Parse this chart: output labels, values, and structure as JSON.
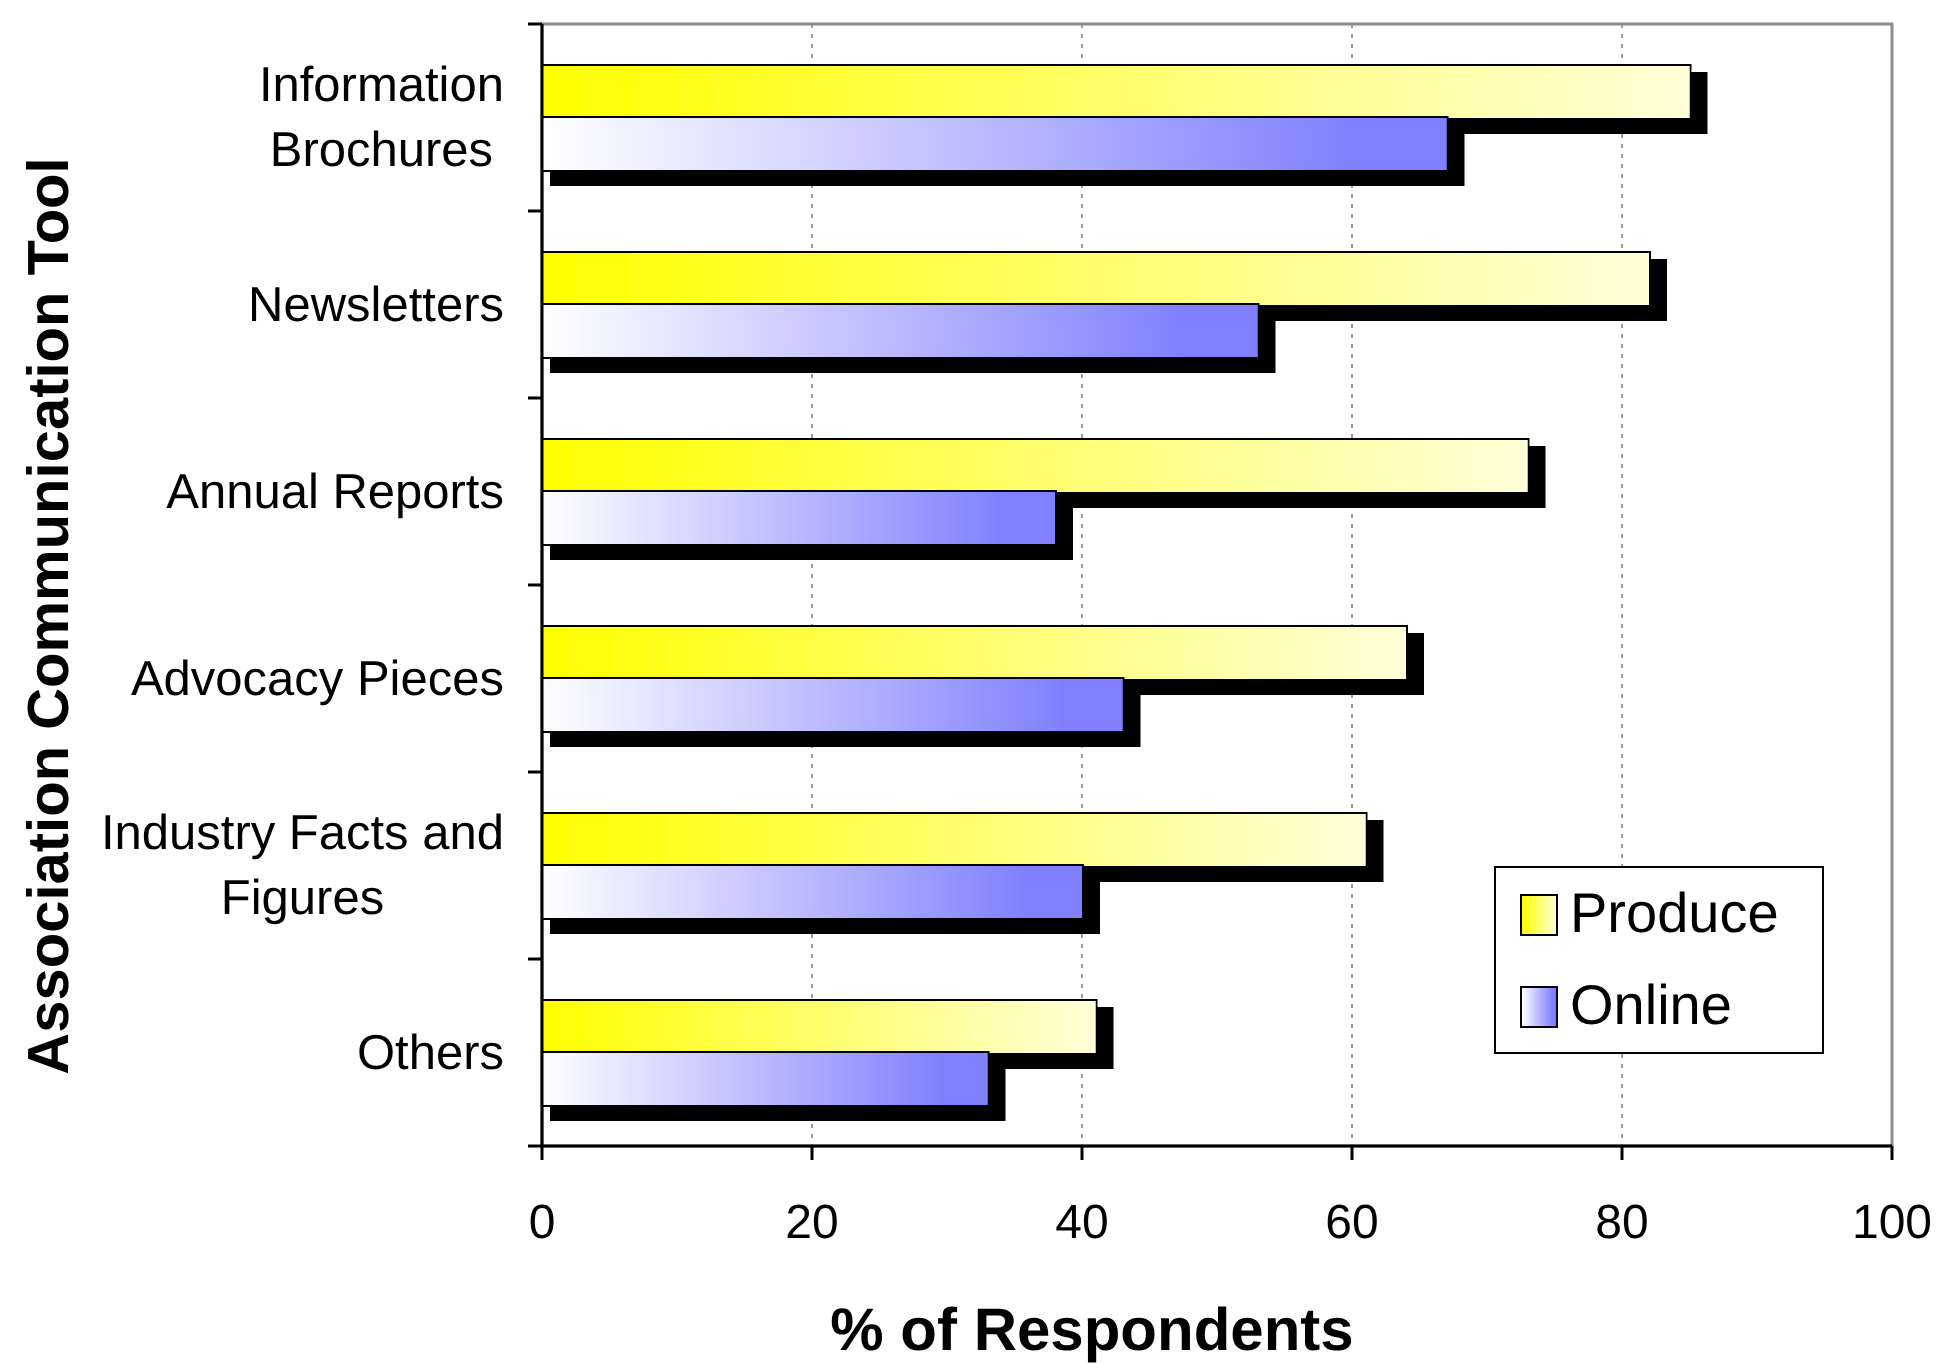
{
  "chart_data": {
    "type": "bar",
    "orientation": "horizontal",
    "xlabel": "% of Respondents",
    "ylabel": "Association Communication Tool",
    "categories": [
      "Information Brochures",
      "Newsletters",
      "Annual Reports",
      "Advocacy Pieces",
      "Industry Facts and Figures",
      "Others"
    ],
    "series": [
      {
        "name": "Produce",
        "color": "#ffff00",
        "values": [
          85,
          82,
          73,
          64,
          61,
          41
        ]
      },
      {
        "name": "Online",
        "color": "#8080ff",
        "values": [
          67,
          53,
          38,
          43,
          40,
          33
        ]
      }
    ],
    "xlim": [
      0,
      100
    ],
    "xticks": [
      0,
      20,
      40,
      60,
      80,
      100
    ],
    "grid": "x",
    "legend": "bottom right"
  }
}
